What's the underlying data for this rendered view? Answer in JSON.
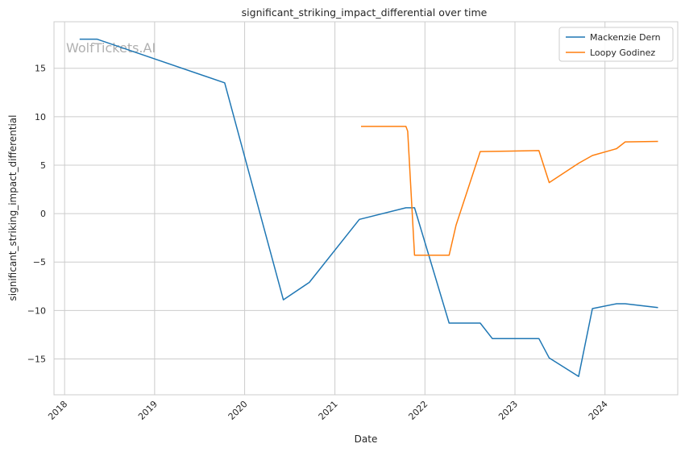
{
  "chart_data": {
    "type": "line",
    "title": "significant_striking_impact_differential over time",
    "xlabel": "Date",
    "ylabel": "significant_striking_impact_differential",
    "x_type": "date",
    "xlim": [
      "2017-11-19",
      "2024-10-22"
    ],
    "ylim": [
      -18.7,
      19.8
    ],
    "x_ticks": [
      "2018",
      "2019",
      "2020",
      "2021",
      "2022",
      "2023",
      "2024"
    ],
    "y_ticks": [
      -15,
      -10,
      -5,
      0,
      5,
      10,
      15
    ],
    "y_tick_labels": [
      "−15",
      "−10",
      "−5",
      "0",
      "5",
      "10",
      "15"
    ],
    "grid": true,
    "legend_position": "top-right",
    "watermark": "WolfTickets.AI",
    "series": [
      {
        "name": "Mackenzie Dern",
        "color": "#1f77b4",
        "x": [
          "2018-03-03",
          "2018-05-12",
          "2019-10-12",
          "2020-06-06",
          "2020-09-19",
          "2021-04-10",
          "2021-10-16",
          "2021-11-20",
          "2022-04-09",
          "2022-08-13",
          "2022-10-01",
          "2023-04-08",
          "2023-05-20",
          "2023-09-16",
          "2023-11-11",
          "2024-02-17",
          "2024-03-23",
          "2024-08-03"
        ],
        "y": [
          18.0,
          18.0,
          13.5,
          -8.9,
          -7.1,
          -0.6,
          0.6,
          0.6,
          -11.3,
          -11.3,
          -12.9,
          -12.9,
          -14.9,
          -16.8,
          -9.8,
          -9.3,
          -9.3,
          -9.7
        ]
      },
      {
        "name": "Loopy Godinez",
        "color": "#ff7f0e",
        "x": [
          "2021-04-17",
          "2021-10-16",
          "2021-10-23",
          "2021-11-20",
          "2022-04-09",
          "2022-05-07",
          "2022-08-13",
          "2023-04-08",
          "2023-05-20",
          "2023-09-16",
          "2023-11-11",
          "2024-02-17",
          "2024-03-23",
          "2024-08-03"
        ],
        "y": [
          9.0,
          9.0,
          8.5,
          -4.3,
          -4.3,
          -1.2,
          6.4,
          6.5,
          3.2,
          5.2,
          6.0,
          6.7,
          7.4,
          7.45
        ]
      }
    ]
  }
}
